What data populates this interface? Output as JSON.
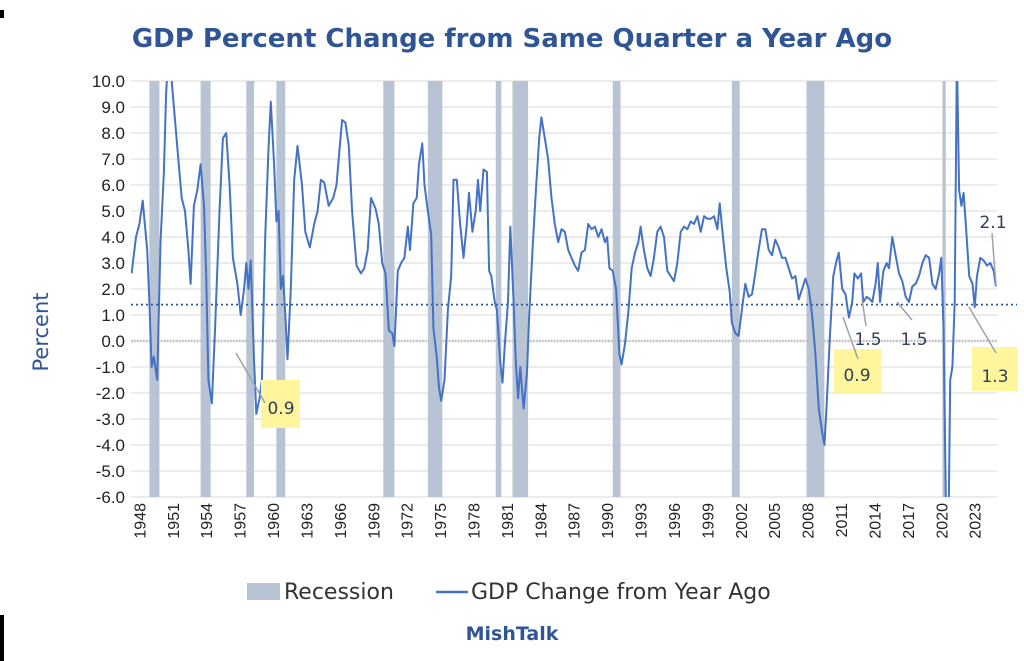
{
  "chart_data": {
    "type": "line",
    "title": "GDP Percent Change from Same Quarter a Year Ago",
    "ylabel": "Percent",
    "xlabel": "",
    "ylim": [
      -6,
      10
    ],
    "xlim": [
      1947.25,
      2025.0
    ],
    "yticks": [
      "10.0",
      "9.0",
      "8.0",
      "7.0",
      "6.0",
      "5.0",
      "4.0",
      "3.0",
      "2.0",
      "1.0",
      "0.0",
      "-1.0",
      "-2.0",
      "-3.0",
      "-4.0",
      "-5.0",
      "-6.0"
    ],
    "xticks": [
      "1948",
      "1951",
      "1954",
      "1957",
      "1960",
      "1963",
      "1966",
      "1969",
      "1972",
      "1975",
      "1978",
      "1981",
      "1984",
      "1987",
      "1990",
      "1993",
      "1996",
      "1999",
      "2002",
      "2005",
      "2008",
      "2011",
      "2014",
      "2017",
      "2020",
      "2023"
    ],
    "grid": true,
    "legend": [
      "Recession",
      "GDP Change from Year Ago"
    ],
    "legend_position": "bottom",
    "credit": "MishTalk",
    "reference_line": {
      "y": 1.4,
      "style": "dotted"
    },
    "recessions": [
      [
        1948.9,
        1949.8
      ],
      [
        1953.5,
        1954.4
      ],
      [
        1957.6,
        1958.3
      ],
      [
        1960.3,
        1961.1
      ],
      [
        1969.9,
        1970.9
      ],
      [
        1973.9,
        1975.2
      ],
      [
        1980.0,
        1980.5
      ],
      [
        1981.5,
        1982.9
      ],
      [
        1990.5,
        1991.2
      ],
      [
        2001.2,
        2001.9
      ],
      [
        2007.9,
        2009.5
      ],
      [
        2020.1,
        2020.4
      ]
    ],
    "series": [
      {
        "name": "GDP Change from Year Ago",
        "color": "#4472c4",
        "points": [
          [
            1947.3,
            2.6
          ],
          [
            1947.7,
            4.0
          ],
          [
            1948.0,
            4.5
          ],
          [
            1948.3,
            5.4
          ],
          [
            1948.7,
            3.5
          ],
          [
            1948.9,
            1.5
          ],
          [
            1949.1,
            -1.0
          ],
          [
            1949.3,
            -0.6
          ],
          [
            1949.6,
            -1.5
          ],
          [
            1949.9,
            3.8
          ],
          [
            1950.2,
            6.5
          ],
          [
            1950.4,
            9.5
          ],
          [
            1950.6,
            11.0
          ],
          [
            1950.9,
            10.0
          ],
          [
            1951.2,
            8.5
          ],
          [
            1951.5,
            7.0
          ],
          [
            1951.8,
            5.5
          ],
          [
            1952.1,
            5.0
          ],
          [
            1952.4,
            3.5
          ],
          [
            1952.6,
            2.2
          ],
          [
            1952.9,
            5.2
          ],
          [
            1953.2,
            5.8
          ],
          [
            1953.5,
            6.8
          ],
          [
            1953.8,
            5.2
          ],
          [
            1954.0,
            2.5
          ],
          [
            1954.2,
            -1.5
          ],
          [
            1954.5,
            -2.4
          ],
          [
            1954.8,
            0.5
          ],
          [
            1955.2,
            5.0
          ],
          [
            1955.5,
            7.8
          ],
          [
            1955.8,
            8.0
          ],
          [
            1956.1,
            6.0
          ],
          [
            1956.4,
            3.2
          ],
          [
            1956.8,
            2.2
          ],
          [
            1957.1,
            1.0
          ],
          [
            1957.4,
            2.0
          ],
          [
            1957.6,
            3.0
          ],
          [
            1957.8,
            2.0
          ],
          [
            1958.0,
            3.1
          ],
          [
            1958.3,
            -0.8
          ],
          [
            1958.5,
            -2.8
          ],
          [
            1958.8,
            -2.2
          ],
          [
            1959.0,
            -1.5
          ],
          [
            1959.3,
            4.0
          ],
          [
            1959.6,
            7.5
          ],
          [
            1959.8,
            9.2
          ],
          [
            1960.1,
            6.8
          ],
          [
            1960.3,
            4.6
          ],
          [
            1960.5,
            5.0
          ],
          [
            1960.7,
            2.0
          ],
          [
            1960.9,
            2.5
          ],
          [
            1961.1,
            1.0
          ],
          [
            1961.3,
            -0.7
          ],
          [
            1961.6,
            2.0
          ],
          [
            1961.9,
            6.2
          ],
          [
            1962.2,
            7.5
          ],
          [
            1962.6,
            6.0
          ],
          [
            1962.9,
            4.2
          ],
          [
            1963.3,
            3.6
          ],
          [
            1963.7,
            4.5
          ],
          [
            1964.0,
            5.0
          ],
          [
            1964.3,
            6.2
          ],
          [
            1964.6,
            6.1
          ],
          [
            1965.0,
            5.2
          ],
          [
            1965.4,
            5.5
          ],
          [
            1965.7,
            6.0
          ],
          [
            1966.0,
            7.5
          ],
          [
            1966.2,
            8.5
          ],
          [
            1966.5,
            8.4
          ],
          [
            1966.8,
            7.5
          ],
          [
            1967.1,
            5.0
          ],
          [
            1967.5,
            2.9
          ],
          [
            1967.9,
            2.6
          ],
          [
            1968.2,
            2.8
          ],
          [
            1968.5,
            3.5
          ],
          [
            1968.8,
            5.5
          ],
          [
            1969.2,
            5.1
          ],
          [
            1969.5,
            4.5
          ],
          [
            1969.8,
            3.0
          ],
          [
            1970.1,
            2.6
          ],
          [
            1970.4,
            0.4
          ],
          [
            1970.7,
            0.3
          ],
          [
            1970.9,
            -0.2
          ],
          [
            1971.2,
            2.7
          ],
          [
            1971.5,
            3.0
          ],
          [
            1971.8,
            3.2
          ],
          [
            1972.1,
            4.4
          ],
          [
            1972.3,
            3.5
          ],
          [
            1972.6,
            5.3
          ],
          [
            1972.9,
            5.5
          ],
          [
            1973.1,
            6.8
          ],
          [
            1973.4,
            7.6
          ],
          [
            1973.6,
            6.0
          ],
          [
            1973.9,
            5.0
          ],
          [
            1974.2,
            4.1
          ],
          [
            1974.4,
            0.5
          ],
          [
            1974.7,
            -0.6
          ],
          [
            1974.9,
            -1.8
          ],
          [
            1975.1,
            -2.3
          ],
          [
            1975.4,
            -1.5
          ],
          [
            1975.7,
            1.2
          ],
          [
            1976.0,
            2.5
          ],
          [
            1976.2,
            6.2
          ],
          [
            1976.5,
            6.2
          ],
          [
            1976.8,
            4.5
          ],
          [
            1977.1,
            3.2
          ],
          [
            1977.4,
            4.5
          ],
          [
            1977.6,
            5.7
          ],
          [
            1977.9,
            4.2
          ],
          [
            1978.2,
            5.0
          ],
          [
            1978.4,
            6.2
          ],
          [
            1978.6,
            5.0
          ],
          [
            1978.9,
            6.6
          ],
          [
            1979.2,
            6.5
          ],
          [
            1979.4,
            2.7
          ],
          [
            1979.6,
            2.5
          ],
          [
            1979.9,
            1.5
          ],
          [
            1980.1,
            1.2
          ],
          [
            1980.4,
            -0.8
          ],
          [
            1980.6,
            -1.6
          ],
          [
            1980.8,
            -0.2
          ],
          [
            1981.1,
            1.5
          ],
          [
            1981.3,
            4.4
          ],
          [
            1981.6,
            1.5
          ],
          [
            1981.8,
            -0.8
          ],
          [
            1982.0,
            -2.2
          ],
          [
            1982.2,
            -1.0
          ],
          [
            1982.5,
            -2.6
          ],
          [
            1982.8,
            -1.2
          ],
          [
            1983.0,
            1.0
          ],
          [
            1983.3,
            3.5
          ],
          [
            1983.6,
            5.8
          ],
          [
            1983.9,
            7.8
          ],
          [
            1984.1,
            8.6
          ],
          [
            1984.4,
            7.8
          ],
          [
            1984.7,
            7.0
          ],
          [
            1985.0,
            5.5
          ],
          [
            1985.3,
            4.5
          ],
          [
            1985.6,
            3.8
          ],
          [
            1985.9,
            4.3
          ],
          [
            1986.2,
            4.2
          ],
          [
            1986.5,
            3.5
          ],
          [
            1986.8,
            3.2
          ],
          [
            1987.1,
            2.9
          ],
          [
            1987.4,
            2.7
          ],
          [
            1987.7,
            3.4
          ],
          [
            1988.0,
            3.5
          ],
          [
            1988.3,
            4.5
          ],
          [
            1988.6,
            4.3
          ],
          [
            1988.9,
            4.4
          ],
          [
            1989.2,
            4.0
          ],
          [
            1989.5,
            4.3
          ],
          [
            1989.8,
            3.8
          ],
          [
            1990.0,
            4.0
          ],
          [
            1990.2,
            2.8
          ],
          [
            1990.5,
            2.7
          ],
          [
            1990.8,
            2.0
          ],
          [
            1991.1,
            -0.5
          ],
          [
            1991.3,
            -0.9
          ],
          [
            1991.6,
            -0.1
          ],
          [
            1991.9,
            1.1
          ],
          [
            1992.2,
            2.8
          ],
          [
            1992.5,
            3.4
          ],
          [
            1992.8,
            3.8
          ],
          [
            1993.0,
            4.4
          ],
          [
            1993.3,
            3.5
          ],
          [
            1993.6,
            2.8
          ],
          [
            1993.9,
            2.5
          ],
          [
            1994.2,
            3.2
          ],
          [
            1994.5,
            4.2
          ],
          [
            1994.8,
            4.4
          ],
          [
            1995.1,
            4.0
          ],
          [
            1995.4,
            2.7
          ],
          [
            1995.7,
            2.5
          ],
          [
            1996.0,
            2.3
          ],
          [
            1996.3,
            3.0
          ],
          [
            1996.6,
            4.2
          ],
          [
            1996.9,
            4.4
          ],
          [
            1997.2,
            4.3
          ],
          [
            1997.5,
            4.6
          ],
          [
            1997.8,
            4.5
          ],
          [
            1998.1,
            4.8
          ],
          [
            1998.4,
            4.2
          ],
          [
            1998.7,
            4.8
          ],
          [
            1999.0,
            4.7
          ],
          [
            1999.3,
            4.7
          ],
          [
            1999.6,
            4.8
          ],
          [
            1999.9,
            4.3
          ],
          [
            2000.1,
            5.3
          ],
          [
            2000.4,
            4.0
          ],
          [
            2000.7,
            2.8
          ],
          [
            2001.0,
            1.9
          ],
          [
            2001.2,
            0.7
          ],
          [
            2001.5,
            0.3
          ],
          [
            2001.8,
            0.2
          ],
          [
            2002.1,
            1.2
          ],
          [
            2002.4,
            2.2
          ],
          [
            2002.7,
            1.7
          ],
          [
            2003.0,
            1.8
          ],
          [
            2003.3,
            2.6
          ],
          [
            2003.6,
            3.5
          ],
          [
            2003.9,
            4.3
          ],
          [
            2004.2,
            4.3
          ],
          [
            2004.5,
            3.5
          ],
          [
            2004.8,
            3.3
          ],
          [
            2005.1,
            3.9
          ],
          [
            2005.4,
            3.6
          ],
          [
            2005.7,
            3.2
          ],
          [
            2006.0,
            3.2
          ],
          [
            2006.3,
            2.8
          ],
          [
            2006.6,
            2.4
          ],
          [
            2006.9,
            2.5
          ],
          [
            2007.2,
            1.6
          ],
          [
            2007.5,
            2.0
          ],
          [
            2007.8,
            2.4
          ],
          [
            2008.1,
            2.0
          ],
          [
            2008.4,
            1.0
          ],
          [
            2008.7,
            -0.5
          ],
          [
            2009.0,
            -2.6
          ],
          [
            2009.3,
            -3.5
          ],
          [
            2009.5,
            -4.0
          ],
          [
            2009.7,
            -2.5
          ],
          [
            2010.0,
            0.2
          ],
          [
            2010.3,
            2.5
          ],
          [
            2010.6,
            3.1
          ],
          [
            2010.8,
            3.4
          ],
          [
            2011.1,
            2.0
          ],
          [
            2011.4,
            1.8
          ],
          [
            2011.7,
            0.9
          ],
          [
            2012.0,
            1.5
          ],
          [
            2012.2,
            2.6
          ],
          [
            2012.5,
            2.4
          ],
          [
            2012.8,
            2.6
          ],
          [
            2013.0,
            1.5
          ],
          [
            2013.3,
            1.7
          ],
          [
            2013.6,
            1.6
          ],
          [
            2013.8,
            1.5
          ],
          [
            2014.1,
            2.2
          ],
          [
            2014.3,
            3.0
          ],
          [
            2014.5,
            1.5
          ],
          [
            2014.8,
            2.7
          ],
          [
            2015.1,
            3.0
          ],
          [
            2015.3,
            2.8
          ],
          [
            2015.6,
            4.0
          ],
          [
            2015.9,
            3.3
          ],
          [
            2016.2,
            2.6
          ],
          [
            2016.5,
            2.3
          ],
          [
            2016.8,
            1.7
          ],
          [
            2017.1,
            1.5
          ],
          [
            2017.4,
            2.1
          ],
          [
            2017.7,
            2.2
          ],
          [
            2018.0,
            2.5
          ],
          [
            2018.3,
            3.0
          ],
          [
            2018.6,
            3.3
          ],
          [
            2018.9,
            3.2
          ],
          [
            2019.2,
            2.2
          ],
          [
            2019.5,
            2.0
          ],
          [
            2019.8,
            2.6
          ],
          [
            2020.0,
            3.2
          ],
          [
            2020.2,
            0.5
          ],
          [
            2020.4,
            -6.0
          ],
          [
            2020.6,
            -9.0
          ],
          [
            2020.8,
            -1.5
          ],
          [
            2021.0,
            -1.0
          ],
          [
            2021.2,
            1.5
          ],
          [
            2021.4,
            11.0
          ],
          [
            2021.6,
            5.8
          ],
          [
            2021.8,
            5.2
          ],
          [
            2022.0,
            5.7
          ],
          [
            2022.2,
            4.5
          ],
          [
            2022.5,
            2.5
          ],
          [
            2022.8,
            2.2
          ],
          [
            2023.0,
            1.3
          ],
          [
            2023.2,
            2.5
          ],
          [
            2023.5,
            3.2
          ],
          [
            2023.8,
            3.1
          ],
          [
            2024.1,
            2.9
          ],
          [
            2024.4,
            3.0
          ],
          [
            2024.7,
            2.7
          ],
          [
            2024.9,
            2.1
          ]
        ]
      }
    ],
    "annotations": [
      {
        "label": "0.9",
        "highlight": true
      },
      {
        "label": "1.5",
        "highlight": false
      },
      {
        "label": "1.5",
        "highlight": false
      },
      {
        "label": "0.9",
        "highlight": true
      },
      {
        "label": "2.1",
        "highlight": false
      },
      {
        "label": "1.3",
        "highlight": true
      }
    ]
  }
}
